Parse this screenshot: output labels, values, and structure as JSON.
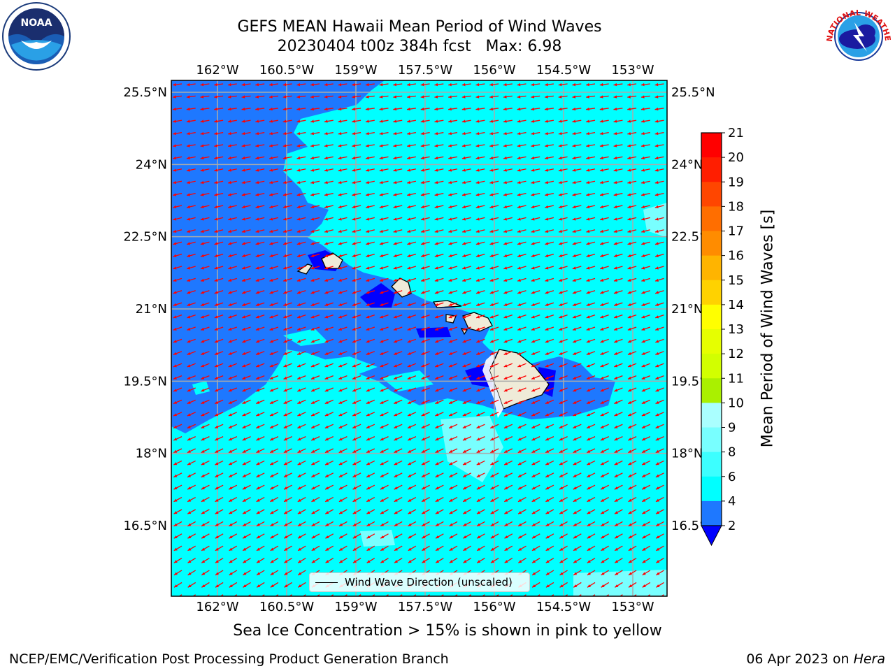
{
  "title": {
    "line1": "GEFS MEAN Hawaii Mean Period of Wind Waves",
    "line2": "20230404 t00z 384h fcst   Max: 6.98"
  },
  "map": {
    "lon_ticks": [
      "162°W",
      "160.5°W",
      "159°W",
      "157.5°W",
      "156°W",
      "154.5°W",
      "153°W"
    ],
    "lat_ticks": [
      "25.5°N",
      "24°N",
      "22.5°N",
      "21°N",
      "19.5°N",
      "18°N",
      "16.5°N"
    ],
    "lon_values": [
      -162,
      -160.5,
      -159,
      -157.5,
      -156,
      -154.5,
      -153
    ],
    "lat_values": [
      25.5,
      24,
      22.5,
      21,
      19.5,
      18,
      16.5
    ],
    "legend_label": "Wind Wave Direction (unscaled)",
    "arrow_color": "#ff0000",
    "land_color": "#efebd8"
  },
  "colorbar": {
    "label": "Mean Period of Wind Waves [s]",
    "tick_labels": [
      "21",
      "20",
      "19",
      "18",
      "17",
      "16",
      "15",
      "14",
      "13",
      "12",
      "11",
      "10",
      "9",
      "8",
      "6",
      "4",
      "2"
    ],
    "colors": [
      "#0000ff",
      "#1e78ff",
      "#00ffff",
      "#3cffff",
      "#78ffff",
      "#aaffff",
      "#50ff78",
      "#28f028",
      "#00e600",
      "#50f000",
      "#aaf000",
      "#d2ff00",
      "#e6ff00",
      "#ffff00",
      "#ffd200",
      "#ffb400",
      "#ff8c00",
      "#ff6e00",
      "#ff4600",
      "#ff1e00",
      "#ff0000"
    ]
  },
  "subtitle": "Sea Ice Concentration > 15% is shown in pink to yellow",
  "footer": {
    "left": "NCEP/EMC/Verification Post Processing Product Generation Branch",
    "date": "06 Apr 2023 on",
    "host": "Hera"
  },
  "logos": {
    "noaa_text": "NOAA",
    "nws_text": "NATIONAL WEATHER SERVICE"
  }
}
